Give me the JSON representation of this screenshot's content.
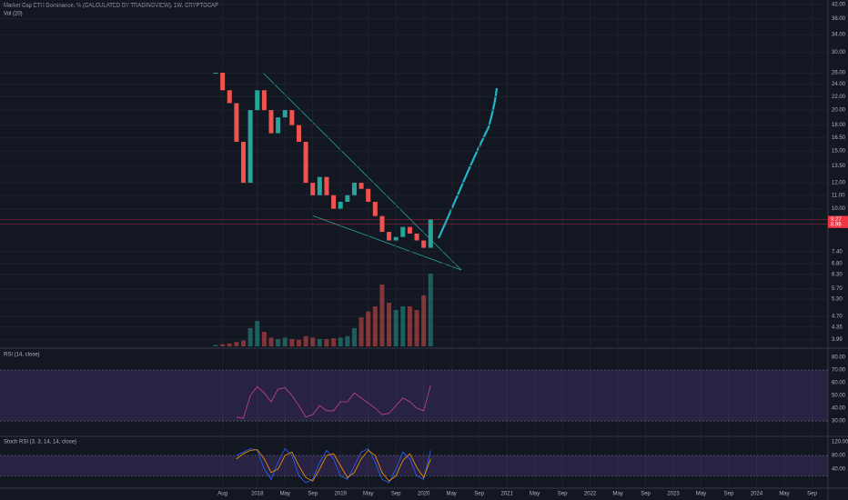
{
  "chart_data": [
    {
      "type": "candlestick",
      "title": "Market Cap ETH Dominance, % (CALCULATED BY TRADINGVIEW), 1W, CRYPTOCAP",
      "x": [
        -1,
        0,
        1,
        2,
        3,
        4,
        5,
        6,
        7,
        8,
        9,
        10,
        11,
        12,
        13,
        14,
        15,
        16,
        17,
        18,
        19,
        20,
        21,
        22,
        23,
        24,
        25,
        26,
        27,
        28,
        29,
        30
      ],
      "values": [
        26,
        23,
        21,
        16,
        12,
        20,
        23,
        20,
        17,
        19,
        20,
        18,
        16,
        12,
        11,
        12.5,
        11,
        10,
        10.5,
        11,
        12,
        11.5,
        10.5,
        9.5,
        8.5,
        8,
        8.2,
        8.8,
        8.4,
        8,
        7.6,
        9.27
      ],
      "up_color": "#26a69a",
      "down_color": "#ef5350",
      "log": true,
      "ylim": [
        3.9,
        42
      ],
      "yticks": [
        {
          "value": 42,
          "label": "42.00"
        },
        {
          "value": 38,
          "label": "38.00"
        },
        {
          "value": 34,
          "label": "34.00"
        },
        {
          "value": 30,
          "label": "30.00"
        },
        {
          "value": 26,
          "label": "26.00"
        },
        {
          "value": 24,
          "label": "24.00"
        },
        {
          "value": 22,
          "label": "22.00"
        },
        {
          "value": 20,
          "label": "20.00"
        },
        {
          "value": 18,
          "label": "18.00"
        },
        {
          "value": 16.5,
          "label": "16.50"
        },
        {
          "value": 15,
          "label": "15.00"
        },
        {
          "value": 13.5,
          "label": "13.50"
        },
        {
          "value": 12,
          "label": "12.00"
        },
        {
          "value": 11,
          "label": "11.00"
        },
        {
          "value": 10,
          "label": "10.00"
        },
        {
          "value": 7.4,
          "label": "7.40"
        },
        {
          "value": 6.8,
          "label": "6.80"
        },
        {
          "value": 6.3,
          "label": "6.30"
        },
        {
          "value": 5.7,
          "label": "5.70"
        },
        {
          "value": 5.3,
          "label": "5.30"
        },
        {
          "value": 4.7,
          "label": "4.70"
        },
        {
          "value": 4.35,
          "label": "4.35"
        },
        {
          "value": 3.99,
          "label": "3.99"
        }
      ],
      "price_markers": [
        9.27,
        8.96
      ],
      "marker_color": "#f23645",
      "xlim": [
        -32.1,
        87.3
      ],
      "xticks": [
        {
          "value": 0,
          "label": "Aug"
        },
        {
          "value": 5,
          "label": "2018"
        },
        {
          "value": 9,
          "label": "May"
        },
        {
          "value": 13,
          "label": "Sep"
        },
        {
          "value": 17,
          "label": "2019"
        },
        {
          "value": 21,
          "label": "May"
        },
        {
          "value": 25,
          "label": "Sep"
        },
        {
          "value": 29,
          "label": "2020"
        },
        {
          "value": 33,
          "label": "May"
        },
        {
          "value": 37,
          "label": "Sep"
        },
        {
          "value": 41,
          "label": "2021"
        },
        {
          "value": 45,
          "label": "May"
        },
        {
          "value": 49,
          "label": "Sep"
        },
        {
          "value": 53,
          "label": "2022"
        },
        {
          "value": 57,
          "label": "May"
        },
        {
          "value": 61,
          "label": "Sep"
        },
        {
          "value": 65,
          "label": "2023"
        },
        {
          "value": 69,
          "label": "May"
        },
        {
          "value": 73,
          "label": "Sep"
        },
        {
          "value": 77,
          "label": "2024"
        },
        {
          "value": 81,
          "label": "May"
        },
        {
          "value": 85,
          "label": "Sep"
        }
      ],
      "grid": true
    },
    {
      "type": "bar",
      "title": "Vol (20)",
      "x": [
        -1,
        0,
        1,
        2,
        3,
        4,
        5,
        6,
        7,
        8,
        9,
        10,
        11,
        12,
        13,
        14,
        15,
        16,
        17,
        18,
        19,
        20,
        21,
        22,
        23,
        24,
        25,
        26,
        27,
        28,
        29,
        30
      ],
      "values": [
        2,
        3,
        4,
        6,
        8,
        25,
        35,
        20,
        12,
        10,
        12,
        10,
        9,
        14,
        12,
        10,
        10,
        11,
        12,
        14,
        25,
        40,
        48,
        55,
        85,
        60,
        50,
        55,
        55,
        50,
        70,
        100
      ],
      "ylim": [
        0,
        100
      ]
    },
    {
      "type": "line",
      "title": "RSI (14, close)",
      "x": [
        2,
        3,
        4,
        5,
        6,
        7,
        8,
        9,
        10,
        11,
        12,
        13,
        14,
        15,
        16,
        17,
        18,
        19,
        20,
        21,
        22,
        23,
        24,
        25,
        26,
        27,
        28,
        29,
        30
      ],
      "series": [
        {
          "color": "#c8409e",
          "values": [
            33,
            32,
            50,
            57,
            52,
            45,
            55,
            56,
            50,
            42,
            33,
            35,
            42,
            38,
            38,
            45,
            45,
            52,
            48,
            44,
            40,
            35,
            36,
            42,
            48,
            45,
            40,
            38,
            58
          ]
        }
      ],
      "band": [
        30,
        70
      ],
      "ylim": [
        19.3,
        85.7
      ],
      "yticks": [
        {
          "value": 80,
          "label": "80.00"
        },
        {
          "value": 70,
          "label": "70.00"
        },
        {
          "value": 60,
          "label": "60.00"
        },
        {
          "value": 50,
          "label": "50.00"
        },
        {
          "value": 40,
          "label": "40.00"
        },
        {
          "value": 30,
          "label": "30.00"
        }
      ]
    },
    {
      "type": "line",
      "title": "Stoch RSI (3, 3, 14, 14, close)",
      "x": [
        2,
        3,
        4,
        5,
        6,
        7,
        8,
        9,
        10,
        11,
        12,
        13,
        14,
        15,
        16,
        17,
        18,
        19,
        20,
        21,
        22,
        23,
        24,
        25,
        26,
        27,
        28,
        29,
        30
      ],
      "series": [
        {
          "color": "#2962ff",
          "values": [
            80,
            90,
            100,
            95,
            40,
            10,
            60,
            100,
            80,
            20,
            0,
            10,
            60,
            95,
            70,
            20,
            10,
            50,
            90,
            100,
            60,
            10,
            0,
            40,
            90,
            70,
            20,
            10,
            95
          ]
        },
        {
          "color": "#ff9800",
          "values": [
            70,
            85,
            95,
            97,
            70,
            30,
            40,
            80,
            90,
            50,
            15,
            5,
            40,
            80,
            85,
            50,
            15,
            30,
            70,
            95,
            80,
            30,
            5,
            20,
            65,
            85,
            45,
            15,
            70
          ]
        }
      ],
      "band": [
        20,
        80
      ],
      "ylim": [
        -10.7,
        136
      ],
      "yticks": [
        {
          "value": 120,
          "label": "120.00"
        },
        {
          "value": 80,
          "label": "80.00"
        },
        {
          "value": 40,
          "label": "40.00"
        }
      ]
    }
  ]
}
